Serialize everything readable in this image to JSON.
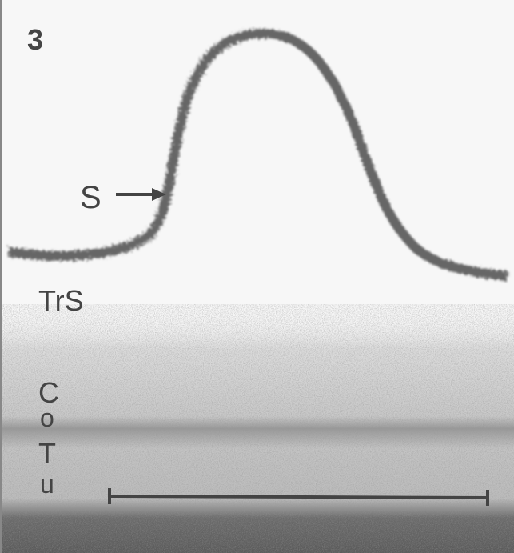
{
  "panel_label": "3",
  "labels": {
    "s": "S",
    "trs": "TrS",
    "cotu": [
      "C",
      "o",
      "T",
      "u"
    ]
  }
}
